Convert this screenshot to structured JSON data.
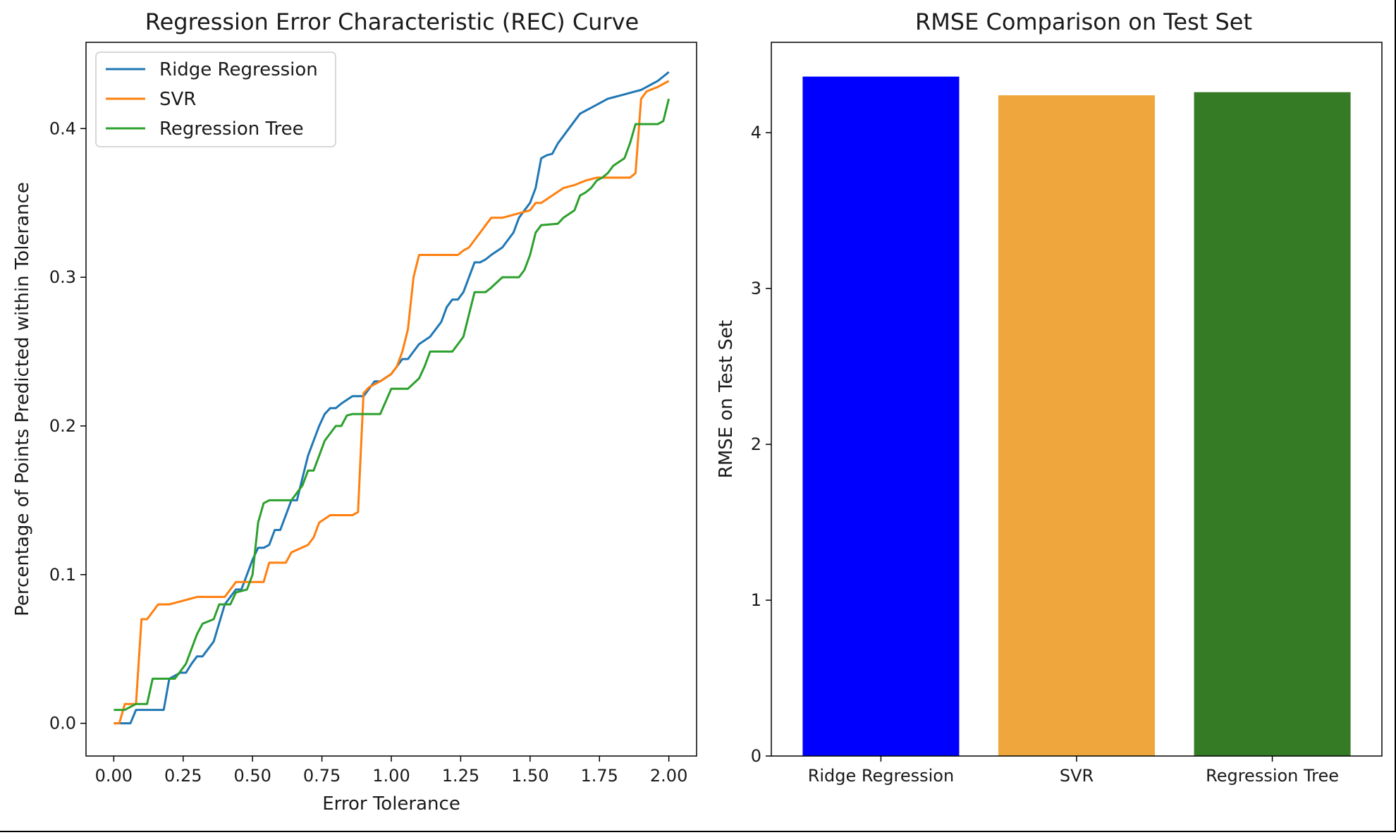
{
  "chart_data": [
    {
      "type": "line",
      "title": "Regression Error Characteristic (REC) Curve",
      "xlabel": "Error Tolerance",
      "ylabel": "Percentage of Points Predicted within Tolerance",
      "xlim": [
        -0.1,
        2.1
      ],
      "ylim": [
        -0.022,
        0.458
      ],
      "xticks": [
        "0.00",
        "0.25",
        "0.50",
        "0.75",
        "1.00",
        "1.25",
        "1.50",
        "1.75",
        "2.00"
      ],
      "yticks": [
        "0.0",
        "0.1",
        "0.2",
        "0.3",
        "0.4"
      ],
      "grid": false,
      "legend_position": "top-left",
      "series": [
        {
          "name": "Ridge Regression",
          "color": "#1f77b4",
          "x": [
            0.0,
            0.06,
            0.08,
            0.18,
            0.2,
            0.24,
            0.26,
            0.28,
            0.3,
            0.32,
            0.34,
            0.36,
            0.4,
            0.44,
            0.46,
            0.48,
            0.5,
            0.52,
            0.54,
            0.56,
            0.58,
            0.6,
            0.62,
            0.64,
            0.66,
            0.68,
            0.7,
            0.72,
            0.74,
            0.76,
            0.78,
            0.8,
            0.82,
            0.86,
            0.88,
            0.9,
            0.94,
            0.96,
            1.0,
            1.02,
            1.04,
            1.06,
            1.08,
            1.1,
            1.14,
            1.16,
            1.18,
            1.2,
            1.22,
            1.24,
            1.26,
            1.28,
            1.3,
            1.32,
            1.34,
            1.36,
            1.4,
            1.42,
            1.44,
            1.46,
            1.48,
            1.5,
            1.52,
            1.54,
            1.56,
            1.58,
            1.6,
            1.62,
            1.64,
            1.66,
            1.68,
            1.7,
            1.72,
            1.74,
            1.76,
            1.78,
            1.8,
            1.82,
            1.84,
            1.86,
            1.88,
            1.9,
            1.92,
            1.94,
            1.96,
            1.98,
            2.0
          ],
          "y": [
            0.0,
            0.0,
            0.009,
            0.009,
            0.03,
            0.034,
            0.034,
            0.04,
            0.045,
            0.045,
            0.05,
            0.055,
            0.08,
            0.09,
            0.09,
            0.1,
            0.11,
            0.118,
            0.118,
            0.12,
            0.13,
            0.13,
            0.14,
            0.15,
            0.15,
            0.165,
            0.18,
            0.19,
            0.2,
            0.208,
            0.212,
            0.212,
            0.215,
            0.22,
            0.22,
            0.22,
            0.23,
            0.23,
            0.235,
            0.24,
            0.245,
            0.245,
            0.25,
            0.255,
            0.26,
            0.265,
            0.27,
            0.28,
            0.285,
            0.285,
            0.29,
            0.3,
            0.31,
            0.31,
            0.312,
            0.315,
            0.32,
            0.325,
            0.33,
            0.34,
            0.345,
            0.35,
            0.36,
            0.38,
            0.382,
            0.383,
            0.39,
            0.395,
            0.4,
            0.405,
            0.41,
            0.412,
            0.414,
            0.416,
            0.418,
            0.42,
            0.421,
            0.422,
            0.423,
            0.424,
            0.425,
            0.426,
            0.428,
            0.43,
            0.432,
            0.435,
            0.438
          ]
        },
        {
          "name": "SVR",
          "color": "#ff7f0e",
          "x": [
            0.0,
            0.02,
            0.04,
            0.08,
            0.1,
            0.12,
            0.14,
            0.16,
            0.2,
            0.3,
            0.32,
            0.4,
            0.44,
            0.46,
            0.54,
            0.56,
            0.62,
            0.64,
            0.7,
            0.72,
            0.74,
            0.78,
            0.82,
            0.86,
            0.88,
            0.9,
            0.92,
            0.96,
            1.0,
            1.02,
            1.04,
            1.06,
            1.08,
            1.1,
            1.14,
            1.18,
            1.24,
            1.26,
            1.28,
            1.3,
            1.32,
            1.34,
            1.36,
            1.4,
            1.5,
            1.52,
            1.54,
            1.58,
            1.62,
            1.66,
            1.7,
            1.72,
            1.74,
            1.78,
            1.82,
            1.86,
            1.88,
            1.9,
            1.92,
            1.96,
            1.98,
            2.0
          ],
          "y": [
            0.0,
            0.0,
            0.013,
            0.013,
            0.07,
            0.07,
            0.075,
            0.08,
            0.08,
            0.085,
            0.085,
            0.085,
            0.095,
            0.095,
            0.095,
            0.108,
            0.108,
            0.115,
            0.12,
            0.125,
            0.135,
            0.14,
            0.14,
            0.14,
            0.142,
            0.222,
            0.226,
            0.23,
            0.235,
            0.24,
            0.25,
            0.265,
            0.3,
            0.315,
            0.315,
            0.315,
            0.315,
            0.318,
            0.32,
            0.325,
            0.33,
            0.335,
            0.34,
            0.34,
            0.345,
            0.35,
            0.35,
            0.355,
            0.36,
            0.362,
            0.365,
            0.366,
            0.367,
            0.367,
            0.367,
            0.367,
            0.37,
            0.42,
            0.425,
            0.428,
            0.43,
            0.432
          ]
        },
        {
          "name": "Regression Tree",
          "color": "#2ca02c",
          "x": [
            0.0,
            0.04,
            0.08,
            0.12,
            0.14,
            0.22,
            0.26,
            0.28,
            0.3,
            0.32,
            0.36,
            0.38,
            0.42,
            0.44,
            0.48,
            0.5,
            0.52,
            0.54,
            0.56,
            0.6,
            0.64,
            0.68,
            0.7,
            0.72,
            0.74,
            0.76,
            0.78,
            0.8,
            0.82,
            0.84,
            0.86,
            0.9,
            0.96,
            1.0,
            1.06,
            1.1,
            1.12,
            1.14,
            1.16,
            1.22,
            1.24,
            1.26,
            1.28,
            1.3,
            1.34,
            1.36,
            1.4,
            1.46,
            1.48,
            1.5,
            1.52,
            1.54,
            1.6,
            1.62,
            1.66,
            1.68,
            1.7,
            1.72,
            1.74,
            1.76,
            1.78,
            1.8,
            1.84,
            1.86,
            1.88,
            1.9,
            1.94,
            1.96,
            1.98,
            2.0
          ],
          "y": [
            0.009,
            0.009,
            0.013,
            0.013,
            0.03,
            0.03,
            0.04,
            0.05,
            0.06,
            0.067,
            0.07,
            0.08,
            0.08,
            0.088,
            0.09,
            0.1,
            0.135,
            0.148,
            0.15,
            0.15,
            0.15,
            0.16,
            0.17,
            0.17,
            0.18,
            0.19,
            0.195,
            0.2,
            0.2,
            0.207,
            0.208,
            0.208,
            0.208,
            0.225,
            0.225,
            0.232,
            0.24,
            0.25,
            0.25,
            0.25,
            0.255,
            0.26,
            0.275,
            0.29,
            0.29,
            0.293,
            0.3,
            0.3,
            0.305,
            0.315,
            0.33,
            0.335,
            0.336,
            0.34,
            0.345,
            0.355,
            0.357,
            0.36,
            0.365,
            0.367,
            0.37,
            0.375,
            0.38,
            0.39,
            0.403,
            0.403,
            0.403,
            0.403,
            0.405,
            0.42
          ]
        }
      ]
    },
    {
      "type": "bar",
      "title": "RMSE Comparison on Test Set",
      "xlabel": "",
      "ylabel": "RMSE on Test Set",
      "ylim": [
        0,
        4.58
      ],
      "yticks": [
        "0",
        "1",
        "2",
        "3",
        "4"
      ],
      "grid": false,
      "categories": [
        "Ridge Regression",
        "SVR",
        "Regression Tree"
      ],
      "values": [
        4.36,
        4.24,
        4.26
      ],
      "colors": [
        "#0000ff",
        "#efa73d",
        "#357a24"
      ]
    }
  ]
}
